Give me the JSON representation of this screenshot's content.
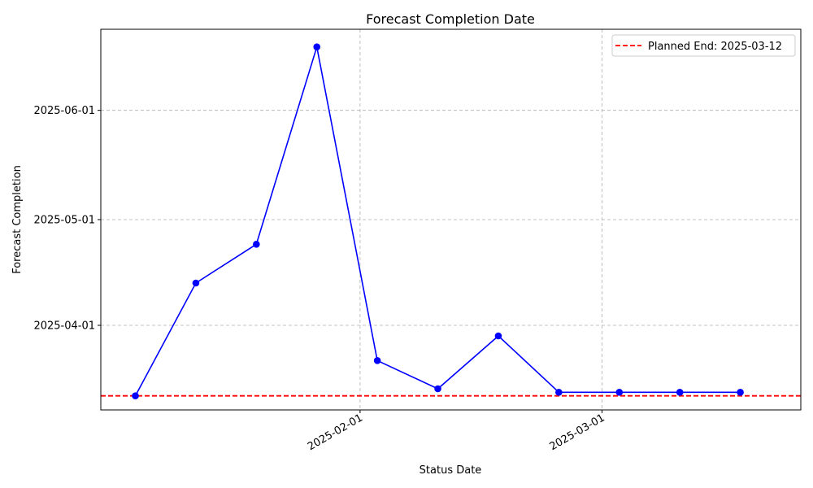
{
  "chart_data": {
    "type": "line",
    "title": "Forecast Completion Date",
    "xlabel": "Status Date",
    "ylabel": "Forecast Completion",
    "x_tick_labels": [
      "2025-02-01",
      "2025-03-01"
    ],
    "y_tick_labels": [
      "2025-04-01",
      "2025-05-01",
      "2025-06-01"
    ],
    "xlim": [
      "2025-01-02",
      "2025-03-24"
    ],
    "ylim": [
      "2025-03-08",
      "2025-06-24"
    ],
    "grid": true,
    "legend_position": "top-right",
    "series": [
      {
        "color": "#0000ff",
        "marker": "circle",
        "x": [
          "2025-01-06",
          "2025-01-13",
          "2025-01-20",
          "2025-01-27",
          "2025-02-03",
          "2025-02-10",
          "2025-02-17",
          "2025-02-24",
          "2025-03-03",
          "2025-03-10",
          "2025-03-17"
        ],
        "y": [
          "2025-03-12",
          "2025-04-13",
          "2025-04-24",
          "2025-06-19",
          "2025-03-22",
          "2025-03-14",
          "2025-03-29",
          "2025-03-13",
          "2025-03-13",
          "2025-03-13",
          "2025-03-13"
        ]
      }
    ],
    "reference_lines": [
      {
        "orientation": "horizontal",
        "value": "2025-03-12",
        "label": "Planned End: 2025-03-12",
        "color": "#ff0000",
        "style": "dashed"
      }
    ]
  }
}
